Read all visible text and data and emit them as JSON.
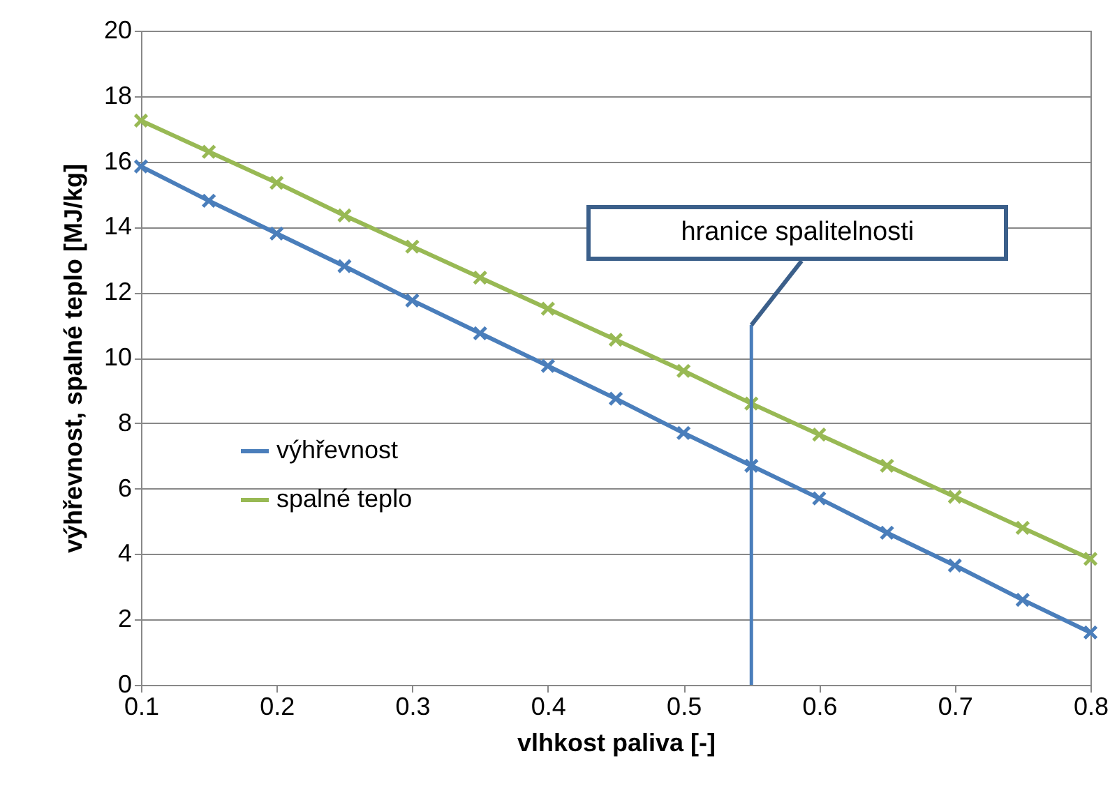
{
  "chart_data": {
    "type": "line",
    "xlabel": "vlhkost paliva [-]",
    "ylabel": "výhřevnost, spalné teplo [MJ/kg]",
    "x": [
      0.1,
      0.15,
      0.2,
      0.25,
      0.3,
      0.35,
      0.4,
      0.45,
      0.5,
      0.55,
      0.6,
      0.65,
      0.7,
      0.75,
      0.8
    ],
    "series": [
      {
        "name": "výhřevnost",
        "color": "#4a7ebb",
        "values": [
          15.85,
          14.8,
          13.8,
          12.8,
          11.75,
          10.75,
          9.75,
          8.75,
          7.7,
          6.7,
          5.7,
          4.65,
          3.65,
          2.6,
          1.6
        ]
      },
      {
        "name": "spalné teplo",
        "color": "#98b954",
        "values": [
          17.25,
          16.3,
          15.35,
          14.35,
          13.4,
          12.45,
          11.5,
          10.55,
          9.6,
          8.6,
          7.65,
          6.7,
          5.75,
          4.8,
          3.85
        ]
      }
    ],
    "ref_lines": [
      {
        "axis": "x",
        "value": 0.55,
        "label": "hranice spalitelnosti",
        "color": "#4a7ebb"
      }
    ],
    "xlim": [
      0.1,
      0.8
    ],
    "xticks": [
      0.1,
      0.2,
      0.3,
      0.4,
      0.5,
      0.6,
      0.7,
      0.8
    ],
    "ylim": [
      0,
      20
    ],
    "yticks": [
      0,
      2,
      4,
      6,
      8,
      10,
      12,
      14,
      16,
      18,
      20
    ],
    "grid": "y",
    "legend": "bottom left",
    "marker": "cross",
    "line_style": "solid"
  }
}
